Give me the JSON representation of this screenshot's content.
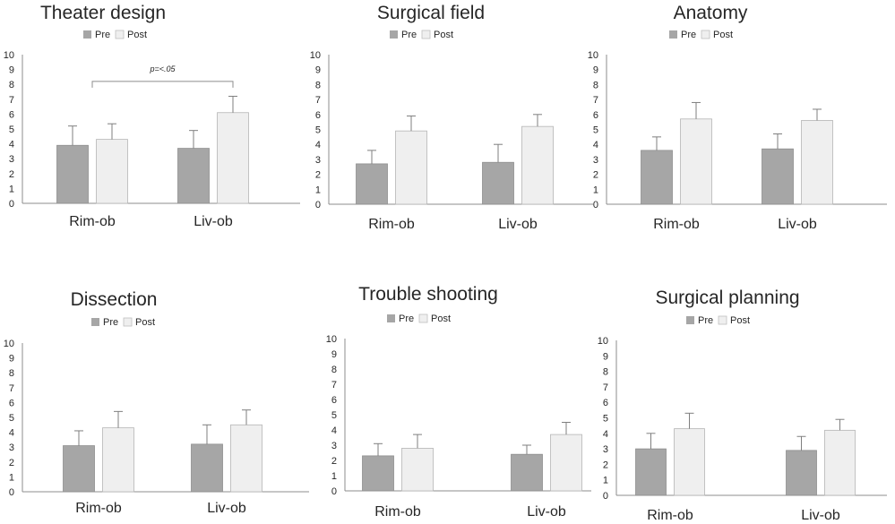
{
  "colors": {
    "pre_fill": "#a6a6a6",
    "post_fill": "#efefef",
    "axis": "#8c8c8c",
    "text": "#262626",
    "error_bar": "#7f7f7f"
  },
  "chart_data": [
    {
      "type": "bar",
      "title": "Theater design",
      "categories": [
        "Rim-ob",
        "Liv-ob"
      ],
      "legend": [
        "Pre",
        "Post"
      ],
      "ylim": [
        0,
        10
      ],
      "yticks": [
        "0",
        "1",
        "2",
        "3",
        "4",
        "5",
        "6",
        "7",
        "8",
        "9",
        "10"
      ],
      "series": [
        {
          "name": "Pre",
          "values": [
            3.9,
            3.7
          ],
          "errors": [
            1.3,
            1.2
          ]
        },
        {
          "name": "Post",
          "values": [
            4.3,
            6.1
          ],
          "errors": [
            1.05,
            1.1
          ]
        }
      ],
      "annotation": {
        "text": "p=<.05",
        "from": "Rim-ob",
        "to": "Liv-ob",
        "y": 8.2
      }
    },
    {
      "type": "bar",
      "title": "Surgical field",
      "categories": [
        "Rim-ob",
        "Liv-ob"
      ],
      "legend": [
        "Pre",
        "Post"
      ],
      "ylim": [
        0,
        10
      ],
      "yticks": [
        "0",
        "1",
        "2",
        "3",
        "4",
        "5",
        "6",
        "7",
        "8",
        "9",
        "10"
      ],
      "series": [
        {
          "name": "Pre",
          "values": [
            2.7,
            2.8
          ],
          "errors": [
            0.9,
            1.2
          ]
        },
        {
          "name": "Post",
          "values": [
            4.9,
            5.2
          ],
          "errors": [
            1.0,
            0.8
          ]
        }
      ]
    },
    {
      "type": "bar",
      "title": "Anatomy",
      "categories": [
        "Rim-ob",
        "Liv-ob"
      ],
      "legend": [
        "Pre",
        "Post"
      ],
      "ylim": [
        0,
        10
      ],
      "yticks": [
        "0",
        "1",
        "2",
        "3",
        "4",
        "5",
        "6",
        "7",
        "8",
        "9",
        "10"
      ],
      "series": [
        {
          "name": "Pre",
          "values": [
            3.6,
            3.7
          ],
          "errors": [
            0.9,
            1.0
          ]
        },
        {
          "name": "Post",
          "values": [
            5.7,
            5.6
          ],
          "errors": [
            1.1,
            0.75
          ]
        }
      ]
    },
    {
      "type": "bar",
      "title": "Dissection",
      "categories": [
        "Rim-ob",
        "Liv-ob"
      ],
      "legend": [
        "Pre",
        "Post"
      ],
      "ylim": [
        0,
        10
      ],
      "yticks": [
        "0",
        "1",
        "2",
        "3",
        "4",
        "5",
        "6",
        "7",
        "8",
        "9",
        "10"
      ],
      "series": [
        {
          "name": "Pre",
          "values": [
            3.1,
            3.2
          ],
          "errors": [
            1.0,
            1.3
          ]
        },
        {
          "name": "Post",
          "values": [
            4.3,
            4.5
          ],
          "errors": [
            1.1,
            1.0
          ]
        }
      ]
    },
    {
      "type": "bar",
      "title": "Trouble shooting",
      "categories": [
        "Rim-ob",
        "Liv-ob"
      ],
      "legend": [
        "Pre",
        "Post"
      ],
      "ylim": [
        0,
        10
      ],
      "yticks": [
        "0",
        "1",
        "2",
        "3",
        "4",
        "5",
        "6",
        "7",
        "8",
        "9",
        "10"
      ],
      "series": [
        {
          "name": "Pre",
          "values": [
            2.3,
            2.4
          ],
          "errors": [
            0.8,
            0.6
          ]
        },
        {
          "name": "Post",
          "values": [
            2.8,
            3.7
          ],
          "errors": [
            0.9,
            0.8
          ]
        }
      ]
    },
    {
      "type": "bar",
      "title": "Surgical planning",
      "categories": [
        "Rim-ob",
        "Liv-ob"
      ],
      "legend": [
        "Pre",
        "Post"
      ],
      "ylim": [
        0,
        10
      ],
      "yticks": [
        "0",
        "1",
        "2",
        "3",
        "4",
        "5",
        "6",
        "7",
        "8",
        "9",
        "10"
      ],
      "series": [
        {
          "name": "Pre",
          "values": [
            3.0,
            2.9
          ],
          "errors": [
            1.0,
            0.9
          ]
        },
        {
          "name": "Post",
          "values": [
            4.3,
            4.2
          ],
          "errors": [
            1.0,
            0.7
          ]
        }
      ]
    }
  ]
}
